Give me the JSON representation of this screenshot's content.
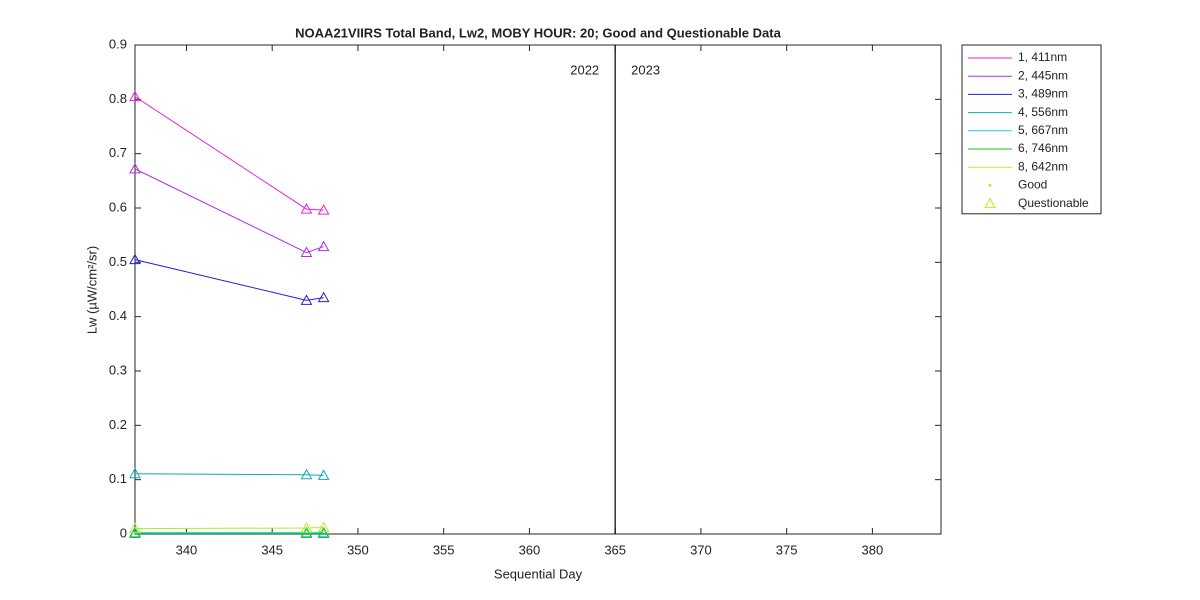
{
  "chart_data": {
    "type": "line",
    "title": "NOAA21VIIRS Total Band,  Lw2, MOBY HOUR: 20;  Good and Questionable Data",
    "xlabel": "Sequential Day",
    "ylabel": "Lw (µW/cm²/sr)",
    "x": [
      337,
      347,
      348
    ],
    "series": [
      {
        "name": "1, 411nm",
        "color": "#f020d0",
        "values": [
          0.805,
          0.598,
          0.596
        ]
      },
      {
        "name": "2, 445nm",
        "color": "#b030e0",
        "values": [
          0.672,
          0.518,
          0.529
        ]
      },
      {
        "name": "3, 489nm",
        "color": "#2020d0",
        "values": [
          0.505,
          0.43,
          0.435
        ]
      },
      {
        "name": "4, 556nm",
        "color": "#10a8c0",
        "values": [
          0.111,
          0.109,
          0.108
        ]
      },
      {
        "name": "5, 667nm",
        "color": "#20c8ff",
        "values": [
          0.003,
          0.003,
          0.003
        ]
      },
      {
        "name": "6, 746nm",
        "color": "#20c020",
        "values": [
          0.001,
          0.001,
          0.001
        ]
      },
      {
        "name": "8, 642nm",
        "color": "#b0f020",
        "values": [
          0.01,
          0.011,
          0.012
        ]
      }
    ],
    "marker_legend": {
      "color": "#b0f020",
      "good": "Good",
      "questionable": "Questionable"
    },
    "year_divider": {
      "x": 365,
      "left_label": "2022",
      "right_label": "2023"
    },
    "xlim": [
      337,
      384
    ],
    "xticks": [
      340,
      345,
      350,
      355,
      360,
      365,
      370,
      375,
      380
    ],
    "ylim": [
      0,
      0.9
    ],
    "yticks": [
      0,
      0.1,
      0.2,
      0.3,
      0.4,
      0.5,
      0.6,
      0.7,
      0.8,
      0.9
    ],
    "grid": false,
    "legend": "outside-right"
  }
}
